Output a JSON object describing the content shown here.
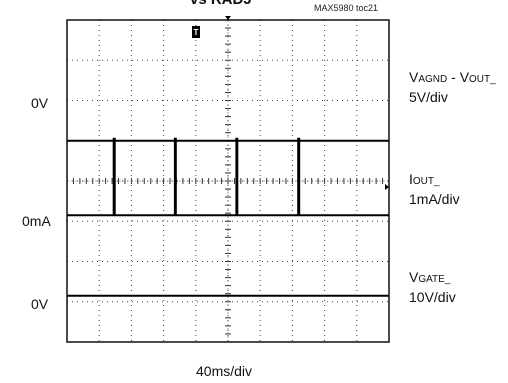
{
  "title_fragment": "vs RADJ",
  "figure_id": "MAX5980 toc21",
  "trigger_marker": "T",
  "xlabel": "40ms/div",
  "channels": [
    {
      "ground_label": "0V",
      "name_main_1": "V",
      "name_sub_1": "AGND",
      "name_main_2": " - V",
      "name_sub_2": "OUT_",
      "scale": "5V/div"
    },
    {
      "ground_label": "0mA",
      "name_main_1": "I",
      "name_sub_1": "OUT_",
      "scale": "1mA/div"
    },
    {
      "ground_label": "0V",
      "name_main_1": "V",
      "name_sub_1": "GATE_",
      "scale": "10V/div"
    }
  ],
  "chart_data": {
    "type": "line",
    "x_unit": "div",
    "xlim": [
      0,
      10
    ],
    "ylim": [
      -4,
      4
    ],
    "grid": true,
    "series": [
      {
        "x": [
          0,
          10
        ],
        "y": [
          1.0,
          1.0
        ]
      },
      {
        "x": [
          0,
          1.45,
          1.45,
          1.48,
          1.48,
          3.35,
          3.35,
          3.38,
          3.38,
          5.26,
          5.26,
          5.29,
          5.29,
          7.18,
          7.18,
          7.21,
          7.21,
          10
        ],
        "y": [
          -0.85,
          -0.85,
          1.05,
          1.05,
          -0.85,
          -0.85,
          1.05,
          1.05,
          -0.85,
          -0.85,
          1.05,
          1.05,
          -0.85,
          -0.85,
          1.05,
          1.05,
          -0.85,
          -0.85
        ]
      },
      {
        "x": [
          0,
          10
        ],
        "y": [
          -2.85,
          -2.85
        ]
      }
    ]
  }
}
